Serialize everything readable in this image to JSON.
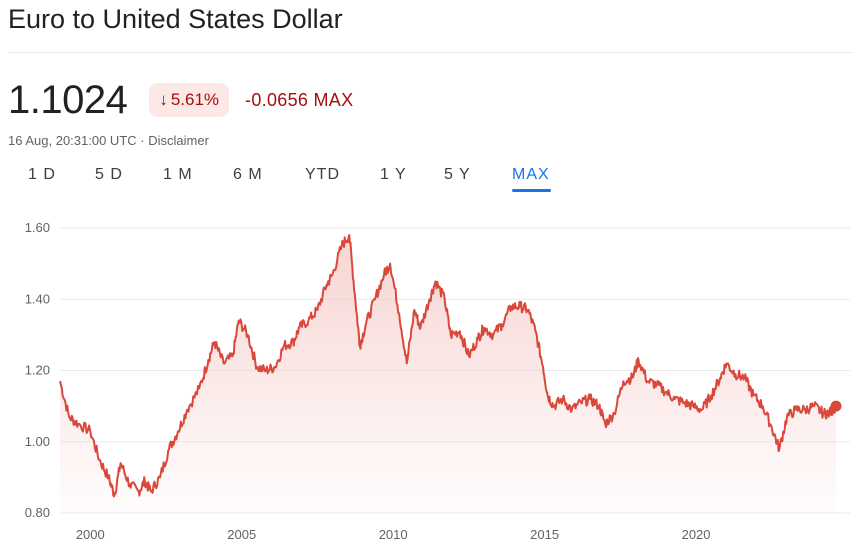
{
  "header": {
    "title": "Euro to United States Dollar",
    "price": "1.1024",
    "change_percent": "5.61%",
    "change_direction": "down",
    "change_abs": "-0.0656 MAX",
    "timestamp": "16 Aug, 20:31:00 UTC",
    "separator": "·",
    "disclaimer": "Disclaimer"
  },
  "tabs": [
    {
      "label": "1 D",
      "active": false
    },
    {
      "label": "5 D",
      "active": false
    },
    {
      "label": "1 M",
      "active": false
    },
    {
      "label": "6 M",
      "active": false
    },
    {
      "label": "YTD",
      "active": false
    },
    {
      "label": "1 Y",
      "active": false
    },
    {
      "label": "5 Y",
      "active": false
    },
    {
      "label": "MAX",
      "active": true
    }
  ],
  "colors": {
    "line": "#d9483b",
    "fill_top": "#f4c7c3",
    "negative": "#a50e0e",
    "active_tab": "#1a73e8"
  },
  "chart_data": {
    "type": "area",
    "title": "",
    "xlabel": "",
    "ylabel": "",
    "ylim": [
      0.8,
      1.6
    ],
    "xlim": [
      1999.0,
      2024.62
    ],
    "yticks": [
      "1.60",
      "1.40",
      "1.20",
      "1.00",
      "0.80"
    ],
    "xticks": [
      "2000",
      "2005",
      "2010",
      "2015",
      "2020"
    ],
    "grid": true,
    "series": [
      {
        "x": [
          1999.0,
          1999.3,
          1999.6,
          2000.0,
          2000.3,
          2000.6,
          2000.8,
          2001.0,
          2001.3,
          2001.6,
          2001.8,
          2002.0,
          2002.3,
          2002.6,
          2002.9,
          2003.2,
          2003.6,
          2003.9,
          2004.1,
          2004.4,
          2004.7,
          2004.9,
          2005.2,
          2005.5,
          2005.8,
          2006.1,
          2006.4,
          2006.7,
          2006.9,
          2007.2,
          2007.5,
          2007.8,
          2008.0,
          2008.3,
          2008.55,
          2008.75,
          2008.9,
          2009.1,
          2009.4,
          2009.7,
          2009.9,
          2010.2,
          2010.45,
          2010.7,
          2010.9,
          2011.2,
          2011.4,
          2011.7,
          2011.9,
          2012.2,
          2012.5,
          2012.8,
          2013.0,
          2013.3,
          2013.6,
          2013.9,
          2014.2,
          2014.45,
          2014.7,
          2014.95,
          2015.1,
          2015.3,
          2015.6,
          2015.9,
          2016.2,
          2016.5,
          2016.8,
          2017.0,
          2017.3,
          2017.6,
          2017.9,
          2018.1,
          2018.4,
          2018.7,
          2019.0,
          2019.3,
          2019.6,
          2019.9,
          2020.2,
          2020.5,
          2020.8,
          2021.0,
          2021.3,
          2021.6,
          2021.9,
          2022.2,
          2022.5,
          2022.75,
          2023.0,
          2023.3,
          2023.6,
          2023.9,
          2024.2,
          2024.4,
          2024.62
        ],
        "y": [
          1.17,
          1.07,
          1.05,
          1.03,
          0.95,
          0.9,
          0.85,
          0.94,
          0.88,
          0.86,
          0.89,
          0.86,
          0.9,
          0.98,
          1.03,
          1.09,
          1.15,
          1.23,
          1.28,
          1.22,
          1.24,
          1.34,
          1.3,
          1.21,
          1.2,
          1.21,
          1.27,
          1.28,
          1.32,
          1.34,
          1.37,
          1.44,
          1.47,
          1.55,
          1.58,
          1.4,
          1.27,
          1.33,
          1.4,
          1.47,
          1.5,
          1.36,
          1.22,
          1.37,
          1.32,
          1.4,
          1.45,
          1.4,
          1.3,
          1.31,
          1.24,
          1.29,
          1.32,
          1.3,
          1.33,
          1.38,
          1.38,
          1.37,
          1.31,
          1.21,
          1.13,
          1.1,
          1.12,
          1.09,
          1.11,
          1.12,
          1.1,
          1.05,
          1.08,
          1.17,
          1.18,
          1.23,
          1.17,
          1.16,
          1.14,
          1.12,
          1.11,
          1.1,
          1.09,
          1.13,
          1.18,
          1.22,
          1.19,
          1.18,
          1.13,
          1.1,
          1.04,
          0.98,
          1.07,
          1.09,
          1.09,
          1.1,
          1.08,
          1.08,
          1.1
        ]
      }
    ]
  }
}
